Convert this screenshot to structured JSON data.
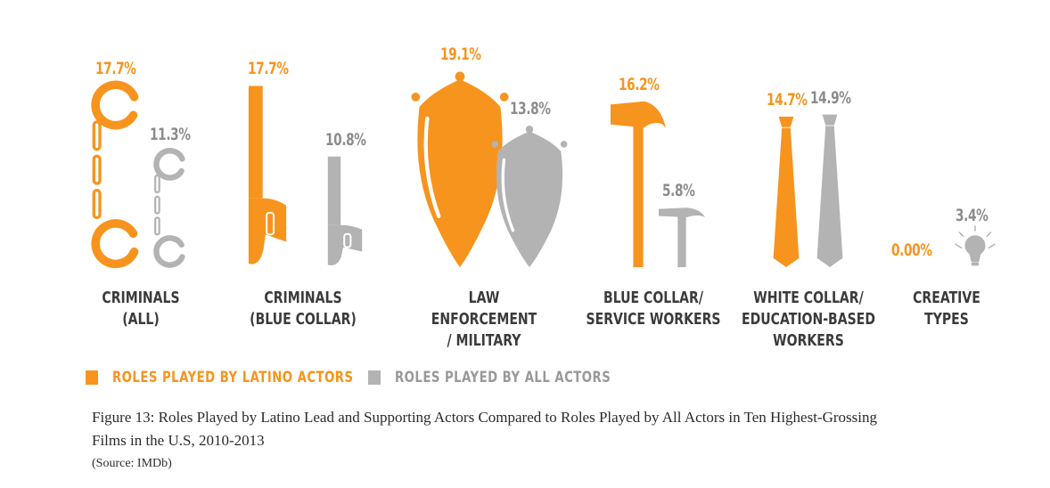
{
  "chart_data": {
    "type": "bar",
    "categories": [
      "CRIMINALS\n(ALL)",
      "CRIMINALS\n(BLUE COLLAR)",
      "LAW ENFORCEMENT\n/ MILITARY",
      "BLUE COLLAR/\nSERVICE WORKERS",
      "WHITE COLLAR/\nEDUCATION-BASED\nWORKERS",
      "CREATIVE\nTYPES"
    ],
    "icons": [
      "handcuffs-icon",
      "pistol-icon",
      "shield-icon",
      "hammer-icon",
      "necktie-icon",
      "lightbulb-icon"
    ],
    "series": [
      {
        "name": "ROLES PLAYED BY LATINO ACTORS",
        "color": "#f7941d",
        "values": [
          17.7,
          17.7,
          19.1,
          16.2,
          14.7,
          0.0
        ],
        "labels": [
          "17.7%",
          "17.7%",
          "19.1%",
          "16.2%",
          "14.7%",
          "0.00%"
        ]
      },
      {
        "name": "ROLES PLAYED BY ALL ACTORS",
        "color": "#b3b3b3",
        "values": [
          11.3,
          10.8,
          13.8,
          5.8,
          14.9,
          3.4
        ],
        "labels": [
          "11.3%",
          "10.8%",
          "13.8%",
          "5.8%",
          "14.9%",
          "3.4%"
        ]
      }
    ],
    "legend_position": "bottom-left"
  },
  "caption": {
    "line1": "Figure 13: Roles Played by Latino Lead and Supporting Actors Compared to Roles Played by All Actors in Ten Highest-Grossing",
    "line2": "Films in the U.S, 2010-2013",
    "source": "(Source: IMDb)"
  },
  "colors": {
    "latino": "#f7941d",
    "all": "#b3b3b3",
    "category_text": "#3b3b3b",
    "legend_latino_text": "#f7941d",
    "legend_all_text": "#999999"
  }
}
